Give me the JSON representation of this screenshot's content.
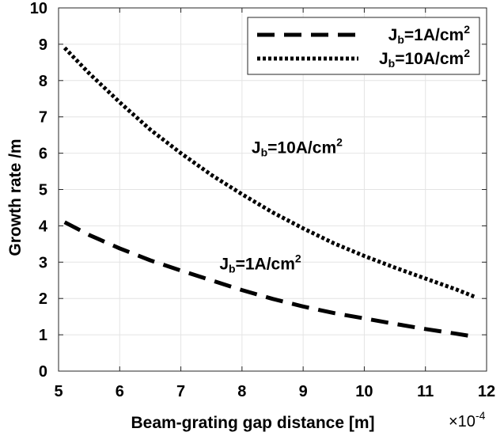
{
  "chart_data": {
    "type": "line",
    "title": "",
    "xlabel": "Beam-grating gap distance [m]",
    "ylabel": "Growth rate /m",
    "xlim": [
      5,
      12
    ],
    "ylim": [
      0,
      10
    ],
    "xticks": [
      5,
      6,
      7,
      8,
      9,
      10,
      11,
      12
    ],
    "yticks": [
      0,
      1,
      2,
      3,
      4,
      5,
      6,
      7,
      8,
      9,
      10
    ],
    "x_exponent": {
      "base": "×10",
      "exp": "-4"
    },
    "grid": true,
    "legend_position": "top-right",
    "x": [
      5.1,
      5.5,
      6.0,
      6.5,
      7.0,
      7.5,
      8.0,
      8.5,
      9.0,
      9.5,
      10.0,
      10.5,
      11.0,
      11.5,
      11.8
    ],
    "series": [
      {
        "name": "Jb=1A/cm2",
        "label_main": "J",
        "label_sub": "b",
        "label_mid": "=1A/cm",
        "label_sup": "2",
        "style": "dashed",
        "values": [
          4.1,
          3.75,
          3.38,
          3.05,
          2.77,
          2.5,
          2.23,
          1.99,
          1.78,
          1.6,
          1.45,
          1.3,
          1.16,
          1.03,
          0.95
        ]
      },
      {
        "name": "Jb=10A/cm2",
        "label_main": "J",
        "label_sub": "b",
        "label_mid": "=10A/cm",
        "label_sup": "2",
        "style": "dotted",
        "values": [
          8.9,
          8.2,
          7.4,
          6.65,
          6.0,
          5.4,
          4.87,
          4.37,
          3.93,
          3.52,
          3.17,
          2.85,
          2.55,
          2.25,
          2.05
        ]
      }
    ],
    "annotations": [
      {
        "series_index": 1,
        "x": 8.9,
        "y": 6.0,
        "main": "J",
        "sub": "b",
        "mid": "=10A/cm",
        "sup": "2"
      },
      {
        "series_index": 0,
        "x": 8.3,
        "y": 2.8,
        "main": "J",
        "sub": "b",
        "mid": "=1A/cm",
        "sup": "2"
      }
    ]
  }
}
